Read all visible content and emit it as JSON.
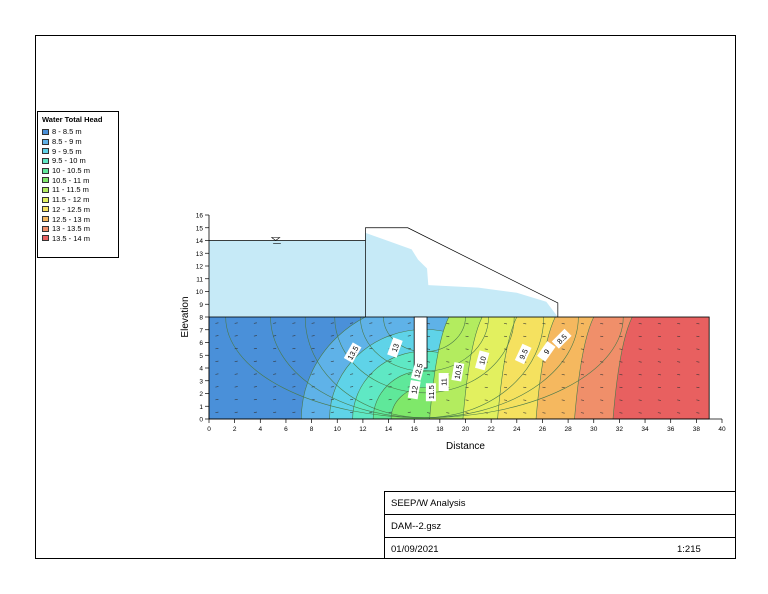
{
  "legend": {
    "title": "Water Total Head",
    "entries": [
      {
        "label": "8 - 8.5 m",
        "color": "#4a90d9"
      },
      {
        "label": "8.5 - 9 m",
        "color": "#5fb2e8"
      },
      {
        "label": "9 - 9.5 m",
        "color": "#5fd3e8"
      },
      {
        "label": "9.5 - 10 m",
        "color": "#5fe8c4"
      },
      {
        "label": "10 - 10.5 m",
        "color": "#5fe89a"
      },
      {
        "label": "10.5 - 11 m",
        "color": "#7fe86a"
      },
      {
        "label": "11 - 11.5 m",
        "color": "#b3ec5f"
      },
      {
        "label": "11.5 - 12 m",
        "color": "#e2f05f"
      },
      {
        "label": "12 - 12.5 m",
        "color": "#f5e15f"
      },
      {
        "label": "12.5 - 13 m",
        "color": "#f5b85f"
      },
      {
        "label": "13 - 13.5 m",
        "color": "#f08f6a"
      },
      {
        "label": "13.5 - 14 m",
        "color": "#e86060"
      }
    ]
  },
  "axes": {
    "xlabel": "Distance",
    "ylabel": "Elevation",
    "xlim": [
      0,
      40
    ],
    "ylim": [
      0,
      16
    ],
    "xticks": [
      0,
      2,
      4,
      6,
      8,
      10,
      12,
      14,
      16,
      18,
      20,
      22,
      24,
      26,
      28,
      30,
      32,
      34,
      36,
      38,
      40
    ],
    "yticks": [
      0,
      1,
      2,
      3,
      4,
      5,
      6,
      7,
      8,
      9,
      10,
      11,
      12,
      13,
      14,
      15,
      16
    ]
  },
  "contour_labels": [
    "13.5",
    "13",
    "12.5",
    "12",
    "11.5",
    "11",
    "10.5",
    "10",
    "9.5",
    "9",
    "8.5"
  ],
  "title_block": {
    "analysis": "SEEP/W Analysis",
    "file": "DAM--2.gsz",
    "date": "01/09/2021",
    "scale": "1:215"
  },
  "colors": {
    "reservoir": "#c6eaf7",
    "phreatic": "#c6eaf7"
  }
}
